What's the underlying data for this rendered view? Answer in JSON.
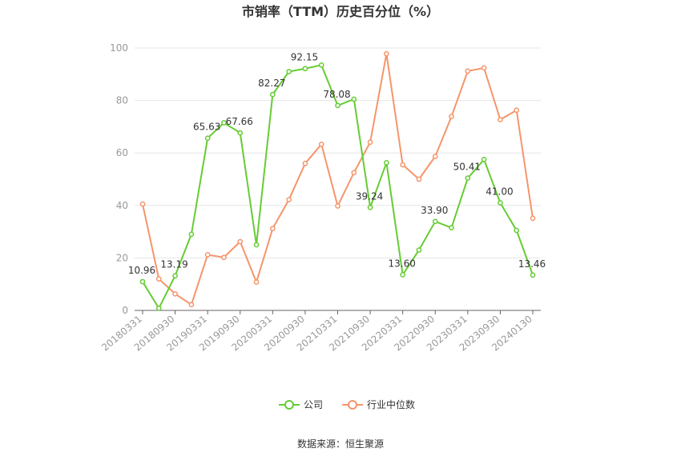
{
  "chart_data": {
    "type": "line",
    "title": "市销率（TTM）历史百分位（%）",
    "source": "数据来源：恒生聚源",
    "xlabel": "",
    "ylabel": "",
    "ylim": [
      0,
      100
    ],
    "yticks": [
      0,
      20,
      40,
      60,
      80,
      100
    ],
    "grid": true,
    "legend_position": "bottom",
    "x": [
      "20180331",
      "20180630",
      "20180930",
      "20181231",
      "20190331",
      "20190630",
      "20190930",
      "20191231",
      "20200331",
      "20200630",
      "20200930",
      "20201231",
      "20210331",
      "20210630",
      "20210930",
      "20211231",
      "20220331",
      "20220630",
      "20220930",
      "20221231",
      "20230331",
      "20230630",
      "20230930",
      "20231231",
      "20240130"
    ],
    "xtick_labels": [
      "20180331",
      "20180930",
      "20190331",
      "20190930",
      "20200331",
      "20200930",
      "20210331",
      "20210930",
      "20220331",
      "20220930",
      "20230331",
      "20230930",
      "20240130"
    ],
    "xtick_indices": [
      0,
      2,
      4,
      6,
      8,
      10,
      12,
      14,
      16,
      18,
      20,
      22,
      24
    ],
    "series": [
      {
        "name": "公司",
        "color": "#66cc33",
        "values": [
          10.96,
          0.8,
          13.19,
          29.0,
          65.63,
          71.5,
          67.66,
          25.0,
          82.27,
          91.0,
          92.15,
          93.5,
          78.08,
          80.5,
          39.24,
          56.3,
          13.6,
          23.0,
          33.9,
          31.5,
          50.41,
          57.5,
          41.0,
          30.5,
          13.46
        ],
        "labels": {
          "0": "10.96",
          "2": "13.19",
          "4": "65.63",
          "6": "67.66",
          "8": "82.27",
          "10": "92.15",
          "12": "78.08",
          "14": "39.24",
          "16": "13.60",
          "18": "33.90",
          "20": "50.41",
          "22": "41.00",
          "24": "13.46"
        }
      },
      {
        "name": "行业中位数",
        "color": "#f5956b",
        "values": [
          40.5,
          12.0,
          6.3,
          2.2,
          21.2,
          20.2,
          26.2,
          10.8,
          31.2,
          42.2,
          56.0,
          63.3,
          39.8,
          52.5,
          64.1,
          97.8,
          55.5,
          50.0,
          58.7,
          73.9,
          91.2,
          92.4,
          72.7,
          76.3,
          35.1
        ]
      }
    ]
  }
}
